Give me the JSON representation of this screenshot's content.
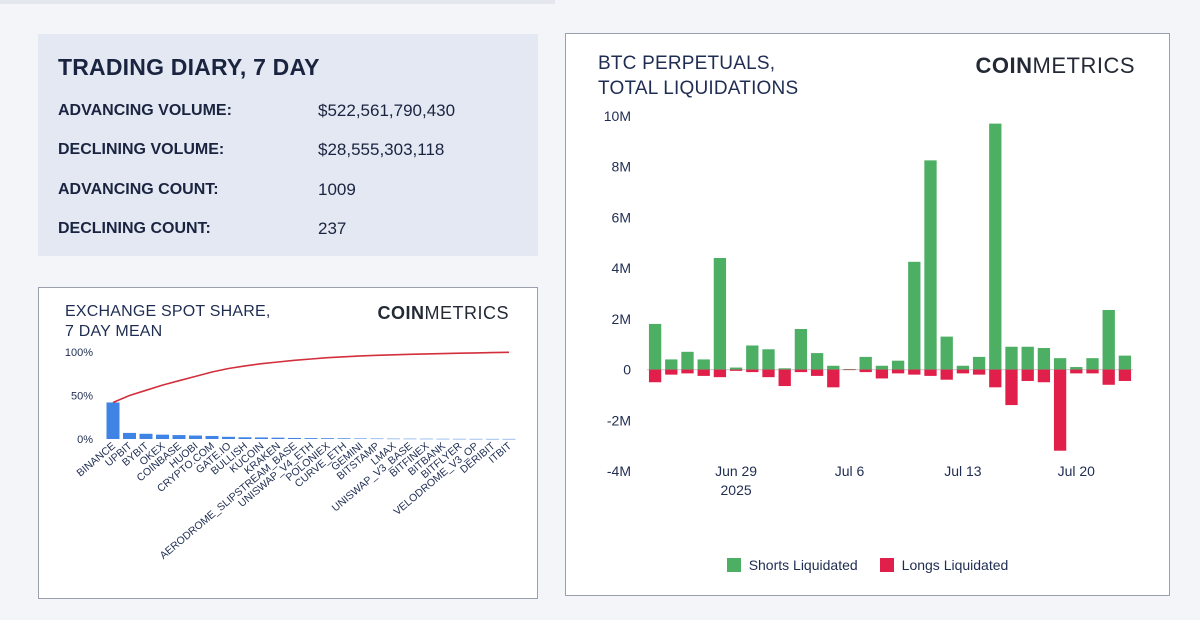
{
  "diary": {
    "title": "TRADING DIARY, 7 DAY",
    "rows": [
      {
        "label": "ADVANCING VOLUME:",
        "value": "$522,561,790,430"
      },
      {
        "label": "DECLINING VOLUME:",
        "value": "$28,555,303,118"
      },
      {
        "label": "ADVANCING COUNT:",
        "value": "1009"
      },
      {
        "label": "DECLINING COUNT:",
        "value": "237"
      }
    ]
  },
  "logo": {
    "bold": "COIN",
    "light": "METRICS"
  },
  "colors": {
    "shorts": "#4caf63",
    "longs": "#e0204a",
    "bar": "#3f84e5",
    "line": "#d32f3c",
    "axis_text": "#1f2d52"
  },
  "chart_data": [
    {
      "type": "bar",
      "title": "EXCHANGE SPOT SHARE,\n7 DAY MEAN",
      "title_lines": [
        "EXCHANGE SPOT SHARE,",
        "7 DAY MEAN"
      ],
      "xlabel": "",
      "ylabel": "",
      "ylim": [
        0,
        100
      ],
      "y_ticks": [
        "0%",
        "50%",
        "100%"
      ],
      "categories": [
        "BINANCE",
        "UPBIT",
        "BYBIT",
        "OKEX",
        "COINBASE",
        "HUOBI",
        "CRYPTO.COM",
        "GATE.IO",
        "BULLISH",
        "KUCOIN",
        "KRAKEN",
        "AERODROME_SLIPSTREAM_BASE",
        "UNISWAP_V4_ETH",
        "POLONIEX",
        "CURVE_ETH",
        "GEMINI",
        "BITSTAMP",
        "LMAX",
        "UNISWAP_V3_BASE",
        "BITFINEX",
        "BITBANK",
        "BITFLYER",
        "VELODROME_V3_OP",
        "DERIBIT",
        "ITBIT"
      ],
      "series": [
        {
          "kind": "bar",
          "values": [
            42,
            7,
            6,
            5,
            4.5,
            4,
            3.5,
            2.5,
            2,
            1.8,
            1.5,
            1.2,
            1,
            0.9,
            0.8,
            0.6,
            0.5,
            0.4,
            0.35,
            0.3,
            0.25,
            0.2,
            0.15,
            0.12,
            0.1
          ]
        },
        {
          "kind": "line",
          "values": [
            42,
            50,
            56,
            62,
            67,
            72,
            77,
            81,
            84,
            86.5,
            88.5,
            90.5,
            92,
            93.5,
            94.5,
            95.5,
            96.2,
            96.8,
            97.3,
            97.8,
            98.2,
            98.6,
            99,
            99.3,
            99.6
          ]
        }
      ]
    },
    {
      "type": "bar",
      "title": "BTC PERPETUALS,\nTOTAL LIQUIDATIONS",
      "title_lines": [
        "BTC PERPETUALS,",
        "TOTAL LIQUIDATIONS"
      ],
      "xlabel": "",
      "ylabel": "",
      "ylim": [
        -4,
        10
      ],
      "y_ticks": [
        "-4M",
        "-2M",
        "0",
        "2M",
        "4M",
        "6M",
        "8M",
        "10M"
      ],
      "y_tick_values": [
        -4,
        -2,
        0,
        2,
        4,
        6,
        8,
        10
      ],
      "x_ticks": [
        {
          "index": 5,
          "label": "Jun 29",
          "sub": "2025"
        },
        {
          "index": 12,
          "label": "Jul 6",
          "sub": ""
        },
        {
          "index": 19,
          "label": "Jul 13",
          "sub": ""
        },
        {
          "index": 26,
          "label": "Jul 20",
          "sub": ""
        }
      ],
      "series": [
        {
          "name": "Shorts Liquidated",
          "values": [
            1.8,
            0.4,
            0.7,
            0.4,
            4.4,
            0.08,
            0.95,
            0.8,
            0.05,
            1.6,
            0.65,
            0.15,
            0.02,
            0.5,
            0.15,
            0.35,
            4.25,
            8.25,
            1.3,
            0.15,
            0.5,
            9.7,
            0.9,
            0.9,
            0.85,
            0.45,
            0.1,
            0.45,
            2.35,
            0.55
          ]
        },
        {
          "name": "Longs Liquidated",
          "values": [
            -0.5,
            -0.2,
            -0.15,
            -0.25,
            -0.3,
            -0.05,
            -0.1,
            -0.3,
            -0.65,
            -0.1,
            -0.25,
            -0.7,
            -0.02,
            -0.1,
            -0.35,
            -0.15,
            -0.2,
            -0.25,
            -0.4,
            -0.15,
            -0.2,
            -0.7,
            -1.4,
            -0.45,
            -0.5,
            -3.2,
            -0.15,
            -0.15,
            -0.6,
            -0.45
          ]
        }
      ]
    }
  ]
}
